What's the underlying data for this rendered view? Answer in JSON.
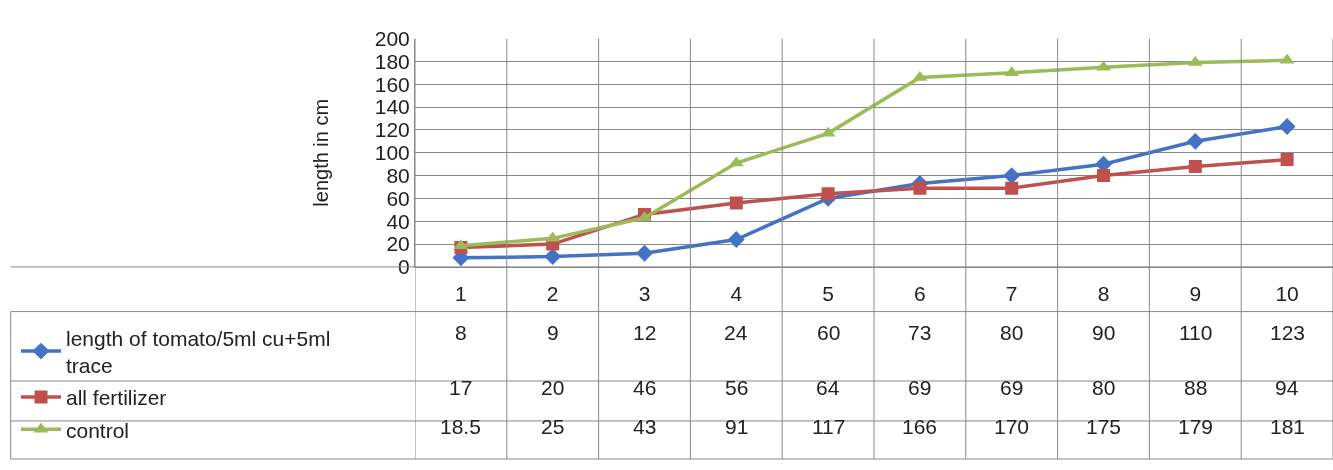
{
  "chart_data": {
    "type": "line",
    "ylabel": "length in cm",
    "categories": [
      "1",
      "2",
      "3",
      "4",
      "5",
      "6",
      "7",
      "8",
      "9",
      "10"
    ],
    "series": [
      {
        "name": "length of tomato/5ml cu+5ml trace",
        "color": "#4472c4",
        "marker": "diamond",
        "values": [
          8,
          9,
          12,
          24,
          60,
          73,
          80,
          90,
          110,
          123
        ]
      },
      {
        "name": "all fertilizer",
        "color": "#c0504d",
        "marker": "square",
        "values": [
          17,
          20,
          46,
          56,
          64,
          69,
          69,
          80,
          88,
          94
        ]
      },
      {
        "name": "control",
        "color": "#9bbb59",
        "marker": "triangle",
        "values": [
          18.5,
          25,
          43,
          91,
          117,
          166,
          170,
          175,
          179,
          181
        ]
      }
    ],
    "ylim": [
      0,
      200
    ],
    "yticks": [
      0,
      20,
      40,
      60,
      80,
      100,
      120,
      140,
      160,
      180,
      200
    ],
    "grid": true,
    "legend": "bottom left",
    "data_labels": true,
    "line_style": "solid"
  }
}
